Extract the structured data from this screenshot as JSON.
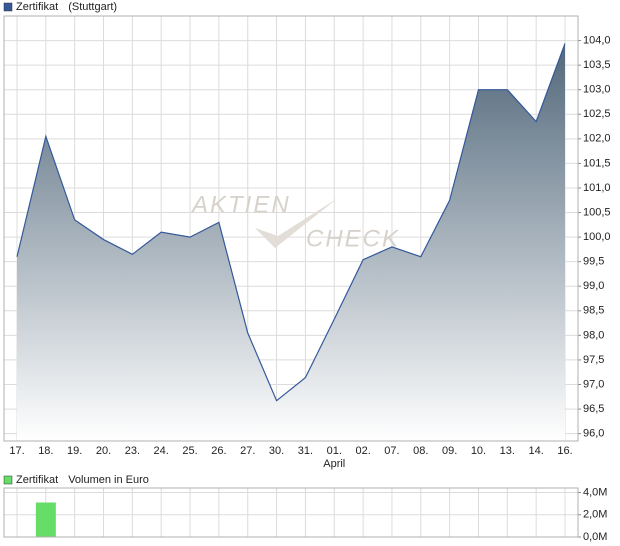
{
  "chart_data": [
    {
      "type": "area",
      "categories": [
        "17.",
        "18.",
        "19.",
        "20.",
        "23.",
        "24.",
        "25.",
        "26.",
        "27.",
        "30.",
        "31.",
        "01.",
        "02.",
        "07.",
        "08.",
        "09.",
        "10.",
        "13.",
        "14.",
        "16."
      ],
      "x_sublabels": [
        null,
        null,
        null,
        null,
        null,
        null,
        null,
        null,
        null,
        null,
        null,
        "April",
        null,
        null,
        null,
        null,
        null,
        null,
        null,
        null
      ],
      "series": [
        {
          "name": "Zertifikat",
          "color": "#34589a",
          "fill": "#52687b",
          "values": [
            99.6,
            102.05,
            100.35,
            99.95,
            99.65,
            100.1,
            100.0,
            100.3,
            98.05,
            96.67,
            97.14,
            98.33,
            99.54,
            99.8,
            99.6,
            100.75,
            103.0,
            103.0,
            102.35,
            103.94
          ]
        }
      ],
      "legend_note": "(Stuttgart)",
      "watermark": [
        "AKTIEN",
        "CHECK"
      ],
      "ylim": [
        95.85,
        104.5
      ],
      "yticks": [
        {
          "value": 96.0,
          "label": "96,0"
        },
        {
          "value": 96.5,
          "label": "96,5"
        },
        {
          "value": 97.0,
          "label": "97,0"
        },
        {
          "value": 97.5,
          "label": "97,5"
        },
        {
          "value": 98.0,
          "label": "98,0"
        },
        {
          "value": 98.5,
          "label": "98,5"
        },
        {
          "value": 99.0,
          "label": "99,0"
        },
        {
          "value": 99.5,
          "label": "99,5"
        },
        {
          "value": 100.0,
          "label": "100,0"
        },
        {
          "value": 100.5,
          "label": "100,5"
        },
        {
          "value": 101.0,
          "label": "101,0"
        },
        {
          "value": 101.5,
          "label": "101,5"
        },
        {
          "value": 102.0,
          "label": "102,0"
        },
        {
          "value": 102.5,
          "label": "102,5"
        },
        {
          "value": 103.0,
          "label": "103,0"
        },
        {
          "value": 103.5,
          "label": "103,5"
        },
        {
          "value": 104.0,
          "label": "104,0"
        }
      ],
      "grid": true
    },
    {
      "type": "bar",
      "series": [
        {
          "name": "Zertifikat",
          "color": "#66dd66",
          "values": [
            0,
            3100000,
            0,
            0,
            0,
            0,
            0,
            0,
            0,
            0,
            0,
            0,
            0,
            0,
            0,
            0,
            0,
            0,
            0,
            0
          ]
        }
      ],
      "legend_note": "Volumen in Euro",
      "ylim": [
        0,
        4400000
      ],
      "yticks": [
        {
          "value": 0,
          "label": "0,0M"
        },
        {
          "value": 2000000,
          "label": "2,0M"
        },
        {
          "value": 4000000,
          "label": "4,0M"
        }
      ],
      "grid": true
    }
  ]
}
